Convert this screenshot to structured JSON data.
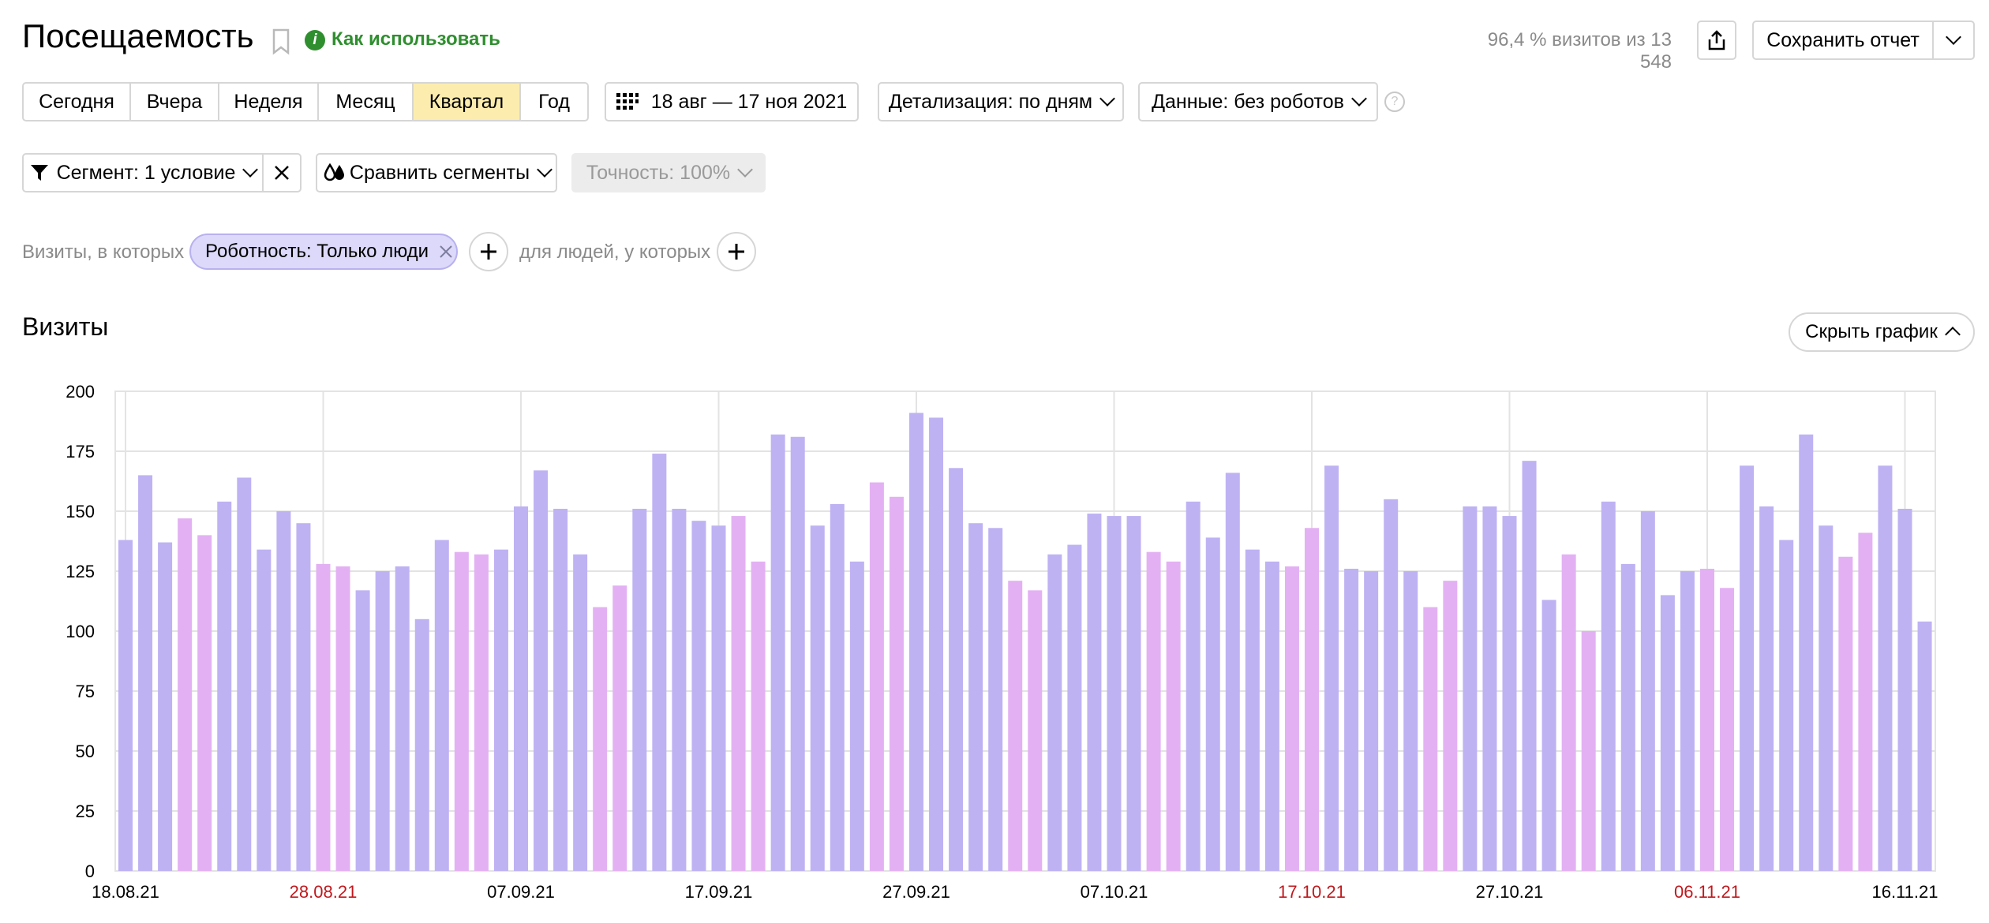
{
  "header": {
    "title": "Посещаемость",
    "help_link": "Как использовать",
    "visits_share": "96,4 % визитов из 13 548",
    "save_report": "Сохранить отчет"
  },
  "periods": {
    "items": [
      "Сегодня",
      "Вчера",
      "Неделя",
      "Месяц",
      "Квартал",
      "Год"
    ],
    "active": "Квартал"
  },
  "date_range": "18 авг — 17 ноя 2021",
  "detail": "Детализация: по дням",
  "data_filter": "Данные: без роботов",
  "segment": {
    "label": "Сегмент: 1 условие",
    "compare": "Сравнить сегменты",
    "accuracy": "Точность: 100%"
  },
  "conditions": {
    "visits_prefix": "Визиты, в которых",
    "chip": "Роботность: Только люди",
    "people_prefix": "для людей, у которых"
  },
  "chart_section": {
    "title": "Визиты",
    "hide_button": "Скрыть график"
  },
  "colors": {
    "weekday_bar": "#bfb2f3",
    "weekend_bar": "#e3b1f3",
    "holiday_label": "#c0181d",
    "accent_green": "#2f8f2f",
    "active_period": "#fcedaf"
  },
  "chart_data": {
    "type": "bar",
    "x_start": "18.08.21",
    "ylim": [
      0,
      200
    ],
    "yticks": [
      0,
      25,
      50,
      75,
      100,
      125,
      150,
      175,
      200
    ],
    "xticks": [
      {
        "label": "18.08.21",
        "index": 0,
        "weekend": false
      },
      {
        "label": "28.08.21",
        "index": 10,
        "weekend": true
      },
      {
        "label": "07.09.21",
        "index": 20,
        "weekend": false
      },
      {
        "label": "17.09.21",
        "index": 30,
        "weekend": false
      },
      {
        "label": "27.09.21",
        "index": 40,
        "weekend": false
      },
      {
        "label": "07.10.21",
        "index": 50,
        "weekend": false
      },
      {
        "label": "17.10.21",
        "index": 60,
        "weekend": true
      },
      {
        "label": "27.10.21",
        "index": 70,
        "weekend": false
      },
      {
        "label": "06.11.21",
        "index": 80,
        "weekend": true
      },
      {
        "label": "16.11.21",
        "index": 90,
        "weekend": false
      }
    ],
    "values": [
      138,
      165,
      137,
      147,
      140,
      154,
      164,
      134,
      150,
      145,
      128,
      127,
      117,
      125,
      127,
      105,
      138,
      133,
      132,
      134,
      152,
      167,
      151,
      132,
      110,
      119,
      151,
      174,
      151,
      146,
      144,
      148,
      129,
      182,
      181,
      144,
      153,
      129,
      162,
      156,
      191,
      189,
      168,
      145,
      143,
      121,
      117,
      132,
      136,
      149,
      148,
      148,
      133,
      129,
      154,
      139,
      166,
      134,
      129,
      127,
      143,
      169,
      126,
      125,
      155,
      125,
      110,
      121,
      152,
      152,
      148,
      171,
      113,
      132,
      100,
      154,
      128,
      150,
      115,
      125,
      126,
      118,
      169,
      152,
      138,
      182,
      144,
      131,
      141,
      169,
      151,
      104
    ],
    "weekend": [
      false,
      false,
      false,
      true,
      true,
      false,
      false,
      false,
      false,
      false,
      true,
      true,
      false,
      false,
      false,
      false,
      false,
      true,
      true,
      false,
      false,
      false,
      false,
      false,
      true,
      true,
      false,
      false,
      false,
      false,
      false,
      true,
      true,
      false,
      false,
      false,
      false,
      false,
      true,
      true,
      false,
      false,
      false,
      false,
      false,
      true,
      true,
      false,
      false,
      false,
      false,
      false,
      true,
      true,
      false,
      false,
      false,
      false,
      false,
      true,
      true,
      false,
      false,
      false,
      false,
      false,
      true,
      true,
      false,
      false,
      false,
      false,
      false,
      true,
      true,
      false,
      false,
      false,
      false,
      false,
      true,
      true,
      false,
      false,
      false,
      false,
      false,
      true,
      true,
      false,
      false,
      false
    ]
  }
}
